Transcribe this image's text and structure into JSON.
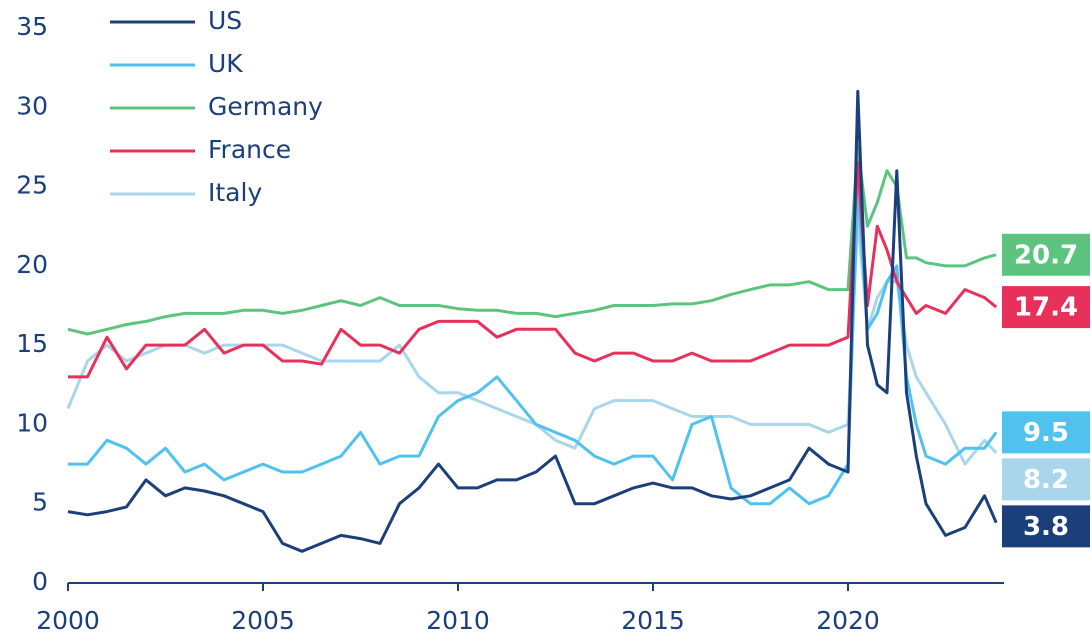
{
  "chart_data": {
    "type": "line",
    "x": [
      2000,
      2000.5,
      2001,
      2001.5,
      2002,
      2002.5,
      2003,
      2003.5,
      2004,
      2004.5,
      2005,
      2005.5,
      2006,
      2006.5,
      2007,
      2007.5,
      2008,
      2008.5,
      2009,
      2009.5,
      2010,
      2010.5,
      2011,
      2011.5,
      2012,
      2012.5,
      2013,
      2013.5,
      2014,
      2014.5,
      2015,
      2015.5,
      2016,
      2016.5,
      2017,
      2017.5,
      2018,
      2018.5,
      2019,
      2019.5,
      2020,
      2020.25,
      2020.5,
      2020.75,
      2021,
      2021.25,
      2021.5,
      2021.75,
      2022,
      2022.5,
      2023,
      2023.5,
      2023.8
    ],
    "series": [
      {
        "name": "US",
        "color": "#1b3f7a",
        "end_label": "3.8",
        "values": [
          4.5,
          4.3,
          4.5,
          4.8,
          6.5,
          5.5,
          6,
          5.8,
          5.5,
          5,
          4.5,
          2.5,
          2,
          2.5,
          3,
          2.8,
          2.5,
          5,
          6,
          7.5,
          6,
          6,
          6.5,
          6.5,
          7,
          8,
          5,
          5,
          5.5,
          6,
          6.3,
          6,
          6,
          5.5,
          5.3,
          5.5,
          6,
          6.5,
          8.5,
          7.5,
          7,
          31,
          15,
          12.5,
          12,
          26,
          12,
          8,
          5,
          3,
          3.5,
          5.5,
          3.8
        ]
      },
      {
        "name": "UK",
        "color": "#4fc3ee",
        "end_label": "9.5",
        "values": [
          7.5,
          7.5,
          9,
          8.5,
          7.5,
          8.5,
          7,
          7.5,
          6.5,
          7,
          7.5,
          7,
          7,
          7.5,
          8,
          9.5,
          7.5,
          8,
          8,
          10.5,
          11.5,
          12,
          13,
          11.5,
          10,
          9.5,
          9,
          8,
          7.5,
          8,
          8,
          6.5,
          10,
          10.5,
          6,
          5,
          5,
          6,
          5,
          5.5,
          7.5,
          25,
          16,
          17,
          19,
          20,
          13,
          10,
          8,
          7.5,
          8.5,
          8.5,
          9.5
        ]
      },
      {
        "name": "Germany",
        "color": "#5cc47f",
        "end_label": "20.7",
        "values": [
          16,
          15.7,
          16,
          16.3,
          16.5,
          16.8,
          17,
          17,
          17,
          17.2,
          17.2,
          17,
          17.2,
          17.5,
          17.8,
          17.5,
          18,
          17.5,
          17.5,
          17.5,
          17.3,
          17.2,
          17.2,
          17,
          17,
          16.8,
          17,
          17.2,
          17.5,
          17.5,
          17.5,
          17.6,
          17.6,
          17.8,
          18.2,
          18.5,
          18.8,
          18.8,
          19,
          18.5,
          18.5,
          27.5,
          22.5,
          24,
          26,
          25,
          20.5,
          20.5,
          20.2,
          20,
          20,
          20.5,
          20.7
        ]
      },
      {
        "name": "France",
        "color": "#e8315a",
        "end_label": "17.4",
        "values": [
          13,
          13,
          15.5,
          13.5,
          15,
          15,
          15,
          16,
          14.5,
          15,
          15,
          14,
          14,
          13.8,
          16,
          15,
          15,
          14.5,
          16,
          16.5,
          16.5,
          16.5,
          15.5,
          16,
          16,
          16,
          14.5,
          14,
          14.5,
          14.5,
          14,
          14,
          14.5,
          14,
          14,
          14,
          14.5,
          15,
          15,
          15,
          15.5,
          26.5,
          17.5,
          22.5,
          21,
          19,
          18,
          17,
          17.5,
          17,
          18.5,
          18,
          17.4
        ]
      },
      {
        "name": "Italy",
        "color": "#a9d6ea",
        "end_label": "8.2",
        "values": [
          11,
          14,
          15,
          14,
          14.5,
          15,
          15,
          14.5,
          15,
          15,
          15,
          15,
          14.5,
          14,
          14,
          14,
          14,
          15,
          13,
          12,
          12,
          11.5,
          11,
          10.5,
          10,
          9,
          8.5,
          11,
          11.5,
          11.5,
          11.5,
          11,
          10.5,
          10.5,
          10.5,
          10,
          10,
          10,
          10,
          9.5,
          10,
          23,
          16,
          18,
          19,
          19,
          15,
          13,
          12,
          10,
          7.5,
          9,
          8.2
        ]
      }
    ],
    "xlim": [
      2000,
      2024
    ],
    "xticks": [
      2000,
      2005,
      2010,
      2015,
      2020
    ],
    "ylim": [
      0,
      35
    ],
    "yticks": [
      0,
      5,
      10,
      15,
      20,
      25,
      30,
      35
    ]
  }
}
